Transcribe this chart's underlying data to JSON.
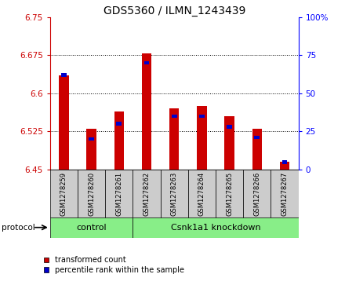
{
  "title": "GDS5360 / ILMN_1243439",
  "samples": [
    "GSM1278259",
    "GSM1278260",
    "GSM1278261",
    "GSM1278262",
    "GSM1278263",
    "GSM1278264",
    "GSM1278265",
    "GSM1278266",
    "GSM1278267"
  ],
  "transformed_counts": [
    6.635,
    6.53,
    6.565,
    6.678,
    6.57,
    6.575,
    6.555,
    6.53,
    6.465
  ],
  "percentile_ranks": [
    62,
    20,
    30,
    70,
    35,
    35,
    28,
    21,
    5
  ],
  "ylim_left": [
    6.45,
    6.75
  ],
  "ylim_right": [
    0,
    100
  ],
  "yticks_left": [
    6.45,
    6.525,
    6.6,
    6.675,
    6.75
  ],
  "yticks_right": [
    0,
    25,
    50,
    75,
    100
  ],
  "ytick_labels_left": [
    "6.45",
    "6.525",
    "6.6",
    "6.675",
    "6.75"
  ],
  "ytick_labels_right": [
    "0",
    "25",
    "50",
    "75",
    "100%"
  ],
  "bar_color_red": "#cc0000",
  "bar_color_blue": "#0000cc",
  "bar_bottom": 6.45,
  "bar_width": 0.35,
  "control_label": "control",
  "knockdown_label": "Csnk1a1 knockdown",
  "protocol_label": "protocol",
  "legend_red_label": "transformed count",
  "legend_blue_label": "percentile rank within the sample",
  "group_box_color": "#88ee88",
  "sample_box_color": "#cccccc",
  "title_fontsize": 10,
  "tick_fontsize": 7.5,
  "sample_fontsize": 6,
  "group_fontsize": 8,
  "legend_fontsize": 7
}
